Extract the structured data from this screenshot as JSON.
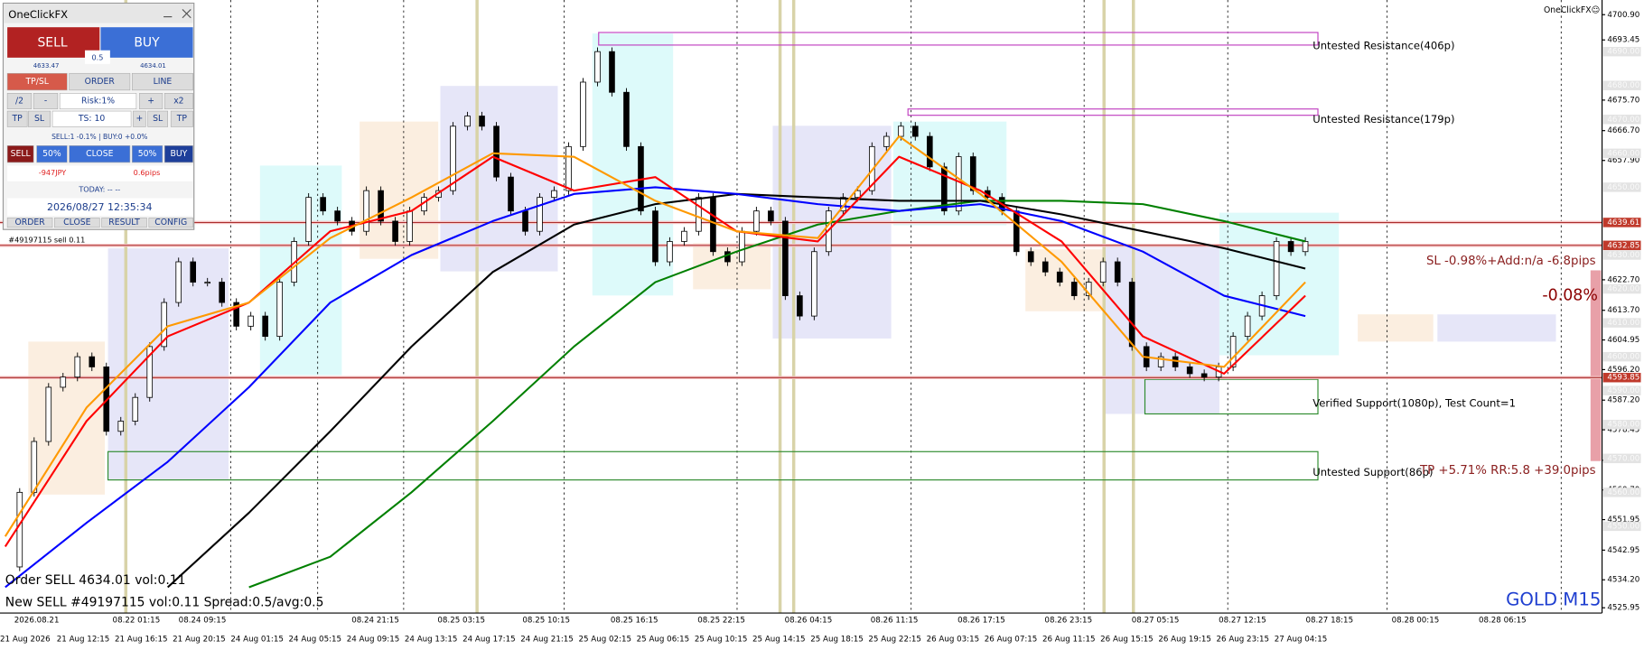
{
  "panel": {
    "title": "OneClickFX",
    "sell": "SELL",
    "buy": "BUY",
    "lot": "0.5",
    "bid": "4633.47",
    "ask": "4634.01",
    "tabs": [
      "TP/SL",
      "ORDER",
      "LINE"
    ],
    "risk_row": [
      "/2",
      "-",
      "Risk:1%",
      "+",
      "x2"
    ],
    "ts_row": [
      "TP",
      "SL",
      "TS: 10",
      "+",
      "SL",
      "TP"
    ],
    "status": "SELL:1 -0.1% | BUY:0 +0.0%",
    "close_row": [
      "SELL",
      "50%",
      "CLOSE",
      "50%",
      "BUY"
    ],
    "pnl": "-947JPY",
    "pips": "0.6pips",
    "today": "TODAY: -- --",
    "clock": "2026/08/27  12:35:34",
    "footer": [
      "ORDER",
      "CLOSE",
      "RESULT",
      "CONFIG"
    ]
  },
  "chart": {
    "ylim": [
      4525.95,
      4700.9
    ],
    "yticks": [
      {
        "value": 4700.9,
        "label": "4700.90"
      },
      4693.45,
      {
        "value": 4675.7,
        "label": "4675.70"
      },
      {
        "value": 4666.7,
        "label": "4666.70"
      },
      {
        "value": 4657.9,
        "label": "4657.90"
      },
      {
        "value": 4622.7,
        "label": "4622.70"
      },
      {
        "value": 4613.7,
        "label": "4613.70"
      },
      4604.95,
      {
        "value": 4596.2,
        "label": "4596.20"
      },
      {
        "value": 4587.2,
        "label": "4587.20"
      },
      4578.45,
      4569.45,
      {
        "value": 4560.7,
        "label": "4560.70"
      },
      4551.95,
      4542.95,
      {
        "value": 4534.2,
        "label": "4534.20"
      },
      4525.95
    ],
    "levels": [
      {
        "value": 4690,
        "label": "4690.00"
      },
      {
        "value": 4680,
        "label": "4680.00"
      },
      {
        "value": 4670,
        "label": "4670.00"
      },
      {
        "value": 4660,
        "label": "4660.00"
      },
      {
        "value": 4650,
        "label": "4650.00"
      },
      {
        "value": 4630,
        "label": "4630.00"
      },
      {
        "value": 4620,
        "label": "4620.00"
      },
      {
        "value": 4610,
        "label": "4610.00"
      },
      {
        "value": 4600,
        "label": "4600.00"
      },
      {
        "value": 4590,
        "label": "4590.00"
      },
      {
        "value": 4580,
        "label": "4580.00"
      },
      {
        "value": 4570,
        "label": "4570.00"
      },
      {
        "value": 4560,
        "label": "4560.00"
      },
      {
        "value": 4550,
        "label": "4550.00"
      }
    ],
    "red_levels": [
      4639.61,
      4632.85,
      4593.85
    ],
    "close": [
      4538,
      4560,
      4575,
      4591,
      4594,
      4600,
      4597,
      4578,
      4581,
      4588,
      4603,
      4616,
      4628,
      4622,
      4622,
      4616,
      4609,
      4612,
      4606,
      4622,
      4634,
      4647,
      4643,
      4640,
      4637,
      4649,
      4640,
      4634,
      4643,
      4647,
      4649,
      4668,
      4671,
      4668,
      4653,
      4643,
      4637,
      4647,
      4649,
      4662,
      4681,
      4690,
      4678,
      4662,
      4643,
      4628,
      4634,
      4637,
      4647,
      4631,
      4628,
      4637,
      4643,
      4640,
      4618,
      4612,
      4631,
      4643,
      4647,
      4649,
      4662,
      4665,
      4668,
      4665,
      4656,
      4643,
      4659,
      4649,
      4647,
      4643,
      4631,
      4628,
      4625,
      4622,
      4618,
      4622,
      4628,
      4622,
      4603,
      4597,
      4600,
      4597,
      4595,
      4594,
      4597,
      4606,
      4612,
      4618,
      4634,
      4631,
      4634
    ],
    "ma": [
      {
        "color": "#008000",
        "values": [
          null,
          null,
          null,
          4532,
          4541,
          4560,
          4581,
          4603,
          4622,
          4631,
          4639,
          4643,
          4646,
          4646,
          4645,
          4640,
          4634
        ]
      },
      {
        "color": "#000000",
        "values": [
          null,
          null,
          4532,
          4554,
          4578,
          4603,
          4625,
          4639,
          4645,
          4648,
          4647,
          4646,
          4646,
          4642,
          4637,
          4632,
          4626
        ]
      },
      {
        "color": "#0000ff",
        "values": [
          4532,
          4551,
          4569,
          4591,
          4616,
          4630,
          4640,
          4648,
          4650,
          4648,
          4645,
          4643,
          4645,
          4640,
          4631,
          4618,
          4612
        ]
      },
      {
        "color": "#ff0000",
        "values": [
          4544,
          4581,
          4606,
          4616,
          4637,
          4643,
          4659,
          4649,
          4653,
          4637,
          4634,
          4659,
          4649,
          4634,
          4606,
          4595,
          4618
        ]
      },
      {
        "color": "#ff9900",
        "values": [
          4547,
          4585,
          4609,
          4616,
          4635,
          4647,
          4660,
          4659,
          4646,
          4637,
          4635,
          4665,
          4648,
          4628,
          4600,
          4597,
          4622
        ]
      }
    ],
    "time_top": [
      "2026.08.21",
      "08.22 01:15",
      "08.24 09:15",
      "08.24 21:15",
      "08.25 03:15",
      "08.25 10:15",
      "08.25 16:15",
      "08.25 22:15",
      "08.26 04:15",
      "08.26 11:15",
      "08.26 17:15",
      "08.26 23:15",
      "08.27 05:15",
      "08.27 12:15",
      "08.27 18:15",
      "08.28 00:15",
      "08.28 06:15"
    ],
    "time_bottom": [
      "21 Aug 2026",
      "21 Aug 12:15",
      "21 Aug 16:15",
      "21 Aug 20:15",
      "24 Aug 01:15",
      "24 Aug 05:15",
      "24 Aug 09:15",
      "24 Aug 13:15",
      "24 Aug 17:15",
      "24 Aug 21:15",
      "25 Aug 02:15",
      "25 Aug 06:15",
      "25 Aug 10:15",
      "25 Aug 14:15",
      "25 Aug 18:15",
      "25 Aug 22:15",
      "26 Aug 03:15",
      "26 Aug 07:15",
      "26 Aug 11:15",
      "26 Aug 15:15",
      "26 Aug 19:15",
      "26 Aug 23:15",
      "27 Aug 04:15"
    ],
    "annotations": {
      "order_tag": "#49197115 sell 0.11",
      "res1": "Untested Resistance(406p)",
      "res2": "Untested Resistance(179p)",
      "sl": "SL -0.98%+Add:n/a -6.8pips",
      "pct": "-0.08%",
      "support1": "Verified Support(1080p), Test Count=1",
      "tp": "TP +5.71% RR:5.8 +39.0pips",
      "support2": "Untested Support(86p)",
      "log1": "Order SELL 4634.01 vol:0.11",
      "log2": "New SELL #49197115 vol:0.11 Spread:0.5/avg:0.5",
      "symbol": "GOLD M15",
      "brand": "OneClickFX☺"
    }
  }
}
